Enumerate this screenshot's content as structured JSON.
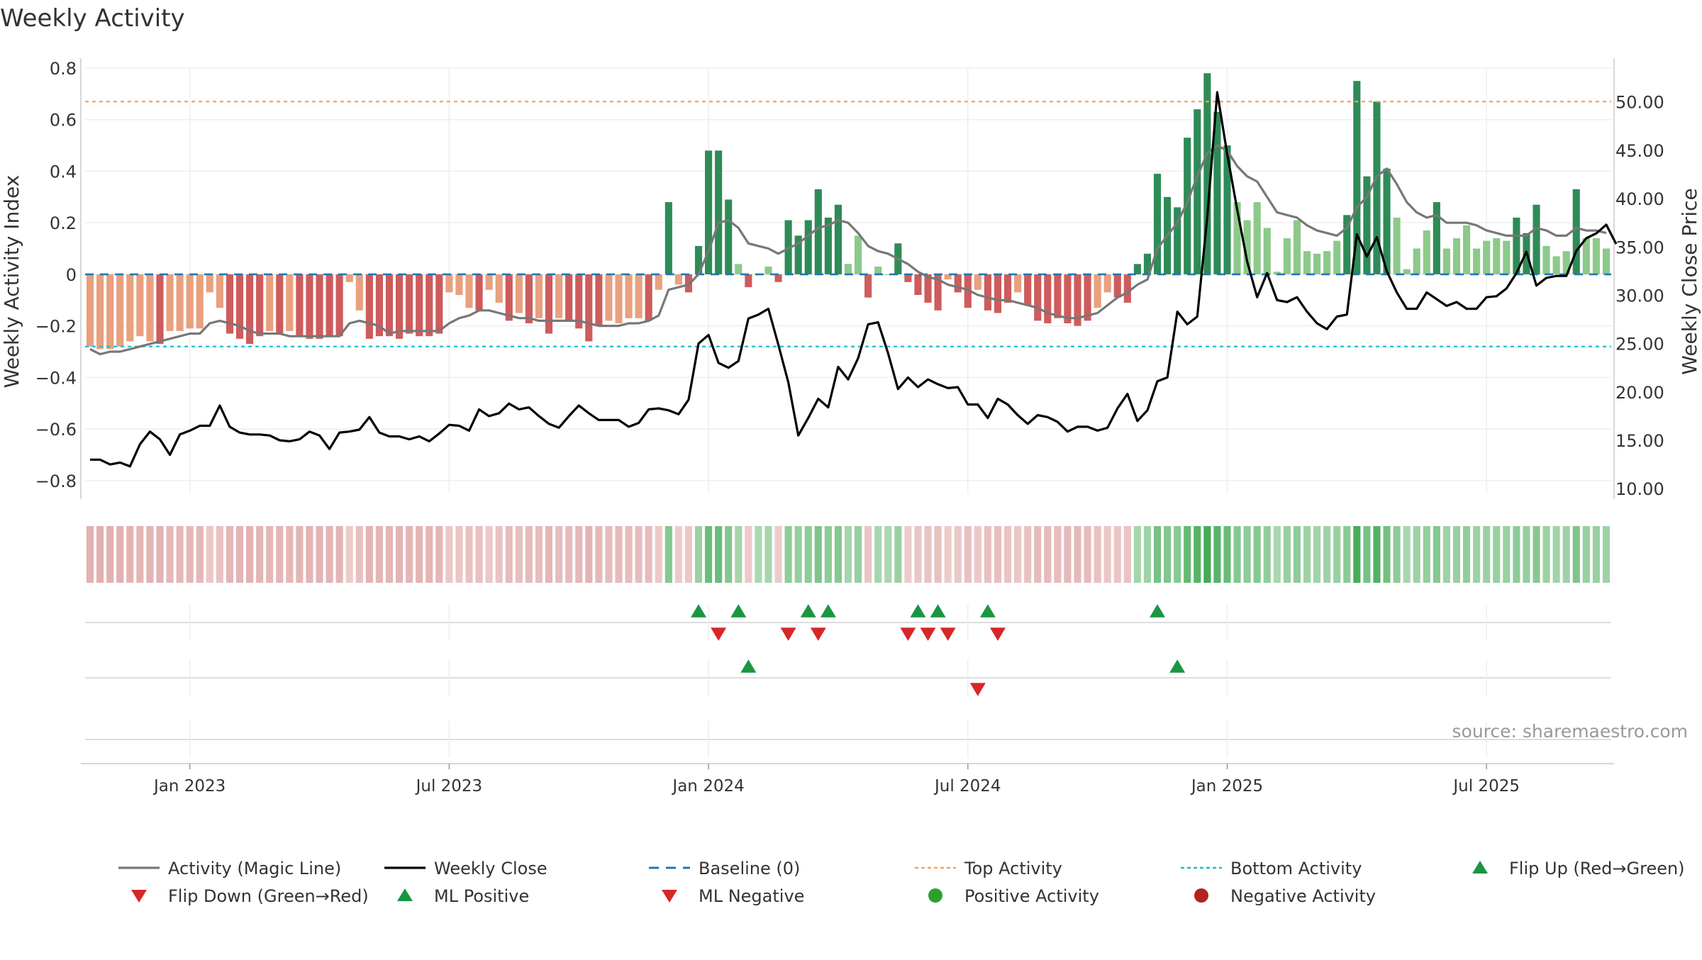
{
  "chart_data": {
    "type": "bar",
    "title": "Weekly Activity",
    "ylabel_left": "Weekly Activity Index",
    "ylabel_right": "Weekly Close Price",
    "ylim_left": [
      -0.85,
      0.8
    ],
    "ylim_right": [
      9.5,
      53.5
    ],
    "yticks_left": [
      -0.8,
      -0.6,
      -0.4,
      -0.2,
      0,
      0.2,
      0.4,
      0.6,
      0.8
    ],
    "yticks_left_labels": [
      "−0.8",
      "−0.6",
      "−0.4",
      "−0.2",
      "0",
      "0.2",
      "0.4",
      "0.6",
      "0.8"
    ],
    "yticks_right": [
      10,
      15,
      20,
      25,
      30,
      35,
      40,
      45,
      50
    ],
    "yticks_right_labels": [
      "10.00",
      "15.00",
      "20.00",
      "25.00",
      "30.00",
      "35.00",
      "40.00",
      "45.00",
      "50.00"
    ],
    "x_ticks": [
      {
        "week": 10,
        "label": "Jan 2023"
      },
      {
        "week": 36,
        "label": "Jul 2023"
      },
      {
        "week": 62,
        "label": "Jan 2024"
      },
      {
        "week": 88,
        "label": "Jul 2024"
      },
      {
        "week": 114,
        "label": "Jan 2025"
      },
      {
        "week": 140,
        "label": "Jul 2025"
      }
    ],
    "top_activity": 0.67,
    "bottom_activity": -0.28,
    "baseline": 0,
    "activity": [
      -0.28,
      -0.29,
      -0.29,
      -0.28,
      -0.26,
      -0.24,
      -0.26,
      -0.27,
      -0.22,
      -0.22,
      -0.21,
      -0.21,
      -0.07,
      -0.13,
      -0.23,
      -0.25,
      -0.27,
      -0.24,
      -0.22,
      -0.23,
      -0.22,
      -0.24,
      -0.25,
      -0.25,
      -0.24,
      -0.24,
      -0.03,
      -0.14,
      -0.25,
      -0.24,
      -0.24,
      -0.25,
      -0.23,
      -0.24,
      -0.24,
      -0.23,
      -0.07,
      -0.08,
      -0.13,
      -0.14,
      -0.06,
      -0.11,
      -0.18,
      -0.15,
      -0.19,
      -0.17,
      -0.23,
      -0.17,
      -0.18,
      -0.21,
      -0.26,
      -0.2,
      -0.18,
      -0.19,
      -0.17,
      -0.17,
      -0.18,
      -0.06,
      0.28,
      -0.04,
      -0.07,
      0.11,
      0.48,
      0.48,
      0.29,
      0.04,
      -0.05,
      0.0,
      0.03,
      -0.03,
      0.21,
      0.15,
      0.21,
      0.33,
      0.22,
      0.27,
      0.04,
      0.15,
      -0.09,
      0.03,
      0.0,
      0.12,
      -0.03,
      -0.08,
      -0.11,
      -0.14,
      -0.02,
      -0.07,
      -0.13,
      -0.06,
      -0.14,
      -0.15,
      -0.11,
      -0.07,
      -0.12,
      -0.18,
      -0.19,
      -0.17,
      -0.19,
      -0.2,
      -0.18,
      -0.13,
      -0.07,
      -0.09,
      -0.11,
      0.04,
      0.08,
      0.39,
      0.3,
      0.26,
      0.53,
      0.64,
      0.78,
      0.63,
      0.5,
      0.28,
      0.21,
      0.28,
      0.18,
      0.01,
      0.14,
      0.21,
      0.09,
      0.08,
      0.09,
      0.13,
      0.23,
      0.75,
      0.38,
      0.67,
      0.41,
      0.22,
      0.02,
      0.1,
      0.17,
      0.28,
      0.1,
      0.14,
      0.19,
      0.1,
      0.13,
      0.14,
      0.13,
      0.22,
      0.16,
      0.27,
      0.11,
      0.07,
      0.09,
      0.33,
      0.14,
      0.14,
      0.1
    ],
    "activity_magic_line": [
      -0.29,
      -0.31,
      -0.3,
      -0.3,
      -0.29,
      -0.28,
      -0.27,
      -0.26,
      -0.25,
      -0.24,
      -0.23,
      -0.23,
      -0.19,
      -0.18,
      -0.19,
      -0.2,
      -0.22,
      -0.23,
      -0.23,
      -0.23,
      -0.24,
      -0.24,
      -0.24,
      -0.24,
      -0.24,
      -0.24,
      -0.19,
      -0.18,
      -0.19,
      -0.2,
      -0.23,
      -0.22,
      -0.22,
      -0.22,
      -0.22,
      -0.22,
      -0.19,
      -0.17,
      -0.16,
      -0.14,
      -0.14,
      -0.15,
      -0.16,
      -0.17,
      -0.17,
      -0.18,
      -0.18,
      -0.18,
      -0.18,
      -0.18,
      -0.19,
      -0.2,
      -0.2,
      -0.2,
      -0.19,
      -0.19,
      -0.18,
      -0.16,
      -0.06,
      -0.05,
      -0.04,
      0.0,
      0.09,
      0.2,
      0.21,
      0.18,
      0.12,
      0.11,
      0.1,
      0.08,
      0.1,
      0.12,
      0.15,
      0.18,
      0.19,
      0.21,
      0.2,
      0.16,
      0.11,
      0.09,
      0.08,
      0.06,
      0.04,
      0.01,
      -0.01,
      -0.02,
      -0.04,
      -0.05,
      -0.06,
      -0.08,
      -0.09,
      -0.1,
      -0.1,
      -0.11,
      -0.12,
      -0.13,
      -0.15,
      -0.16,
      -0.17,
      -0.17,
      -0.16,
      -0.15,
      -0.12,
      -0.09,
      -0.07,
      -0.04,
      -0.02,
      0.1,
      0.15,
      0.2,
      0.28,
      0.38,
      0.47,
      0.5,
      0.48,
      0.42,
      0.38,
      0.36,
      0.3,
      0.24,
      0.23,
      0.22,
      0.19,
      0.17,
      0.16,
      0.15,
      0.18,
      0.26,
      0.3,
      0.38,
      0.41,
      0.35,
      0.28,
      0.24,
      0.22,
      0.23,
      0.2,
      0.2,
      0.2,
      0.19,
      0.17,
      0.16,
      0.15,
      0.15,
      0.15,
      0.18,
      0.17,
      0.15,
      0.15,
      0.18,
      0.17,
      0.17,
      0.16
    ],
    "weekly_close": [
      13.0,
      13.0,
      12.5,
      12.7,
      12.3,
      14.6,
      15.9,
      15.1,
      13.5,
      15.6,
      16.0,
      16.5,
      16.5,
      18.6,
      16.4,
      15.8,
      15.6,
      15.6,
      15.5,
      15.0,
      14.9,
      15.1,
      15.9,
      15.5,
      14.1,
      15.8,
      15.9,
      16.1,
      17.4,
      15.8,
      15.4,
      15.4,
      15.1,
      15.4,
      14.9,
      15.7,
      16.6,
      16.5,
      16.0,
      18.2,
      17.5,
      17.8,
      18.8,
      18.2,
      18.4,
      17.5,
      16.7,
      16.3,
      17.5,
      18.6,
      17.8,
      17.1,
      17.1,
      17.1,
      16.4,
      16.8,
      18.2,
      18.3,
      18.1,
      17.7,
      19.2,
      25.0,
      25.9,
      23.0,
      22.5,
      23.2,
      27.6,
      28.0,
      28.6,
      24.9,
      21.0,
      15.5,
      17.3,
      19.3,
      18.4,
      22.6,
      21.3,
      23.5,
      27.0,
      27.2,
      24.0,
      20.3,
      21.5,
      20.5,
      21.3,
      20.8,
      20.4,
      20.5,
      18.7,
      18.7,
      17.3,
      19.3,
      18.7,
      17.6,
      16.7,
      17.6,
      17.4,
      16.9,
      15.9,
      16.4,
      16.4,
      16.0,
      16.3,
      18.3,
      19.8,
      17.0,
      18.1,
      21.1,
      21.5,
      28.3,
      27.0,
      27.8,
      38.1,
      51.0,
      44.6,
      38.9,
      33.5,
      29.8,
      32.3,
      29.5,
      29.3,
      29.8,
      28.3,
      27.1,
      26.5,
      27.8,
      28.0,
      36.3,
      34.0,
      36.0,
      32.5,
      30.3,
      28.6,
      28.6,
      30.3,
      29.6,
      28.9,
      29.3,
      28.6,
      28.6,
      29.8,
      29.9,
      30.7,
      32.3,
      34.5,
      31.0,
      31.8,
      32.0,
      32.0,
      34.6,
      35.9,
      36.4,
      37.3,
      35.3
    ],
    "strip_intensity_legend": "bar colour strip mirrors activity sign and strength",
    "flip_up_weeks": [
      61,
      65,
      72,
      74,
      83,
      85,
      90,
      107
    ],
    "flip_down_weeks": [
      63,
      70,
      73,
      82,
      84,
      86,
      91
    ],
    "ml_positive_weeks": [
      66,
      109
    ],
    "ml_negative_weeks": [
      89
    ],
    "legend": [
      {
        "label": "Activity (Magic Line)",
        "kind": "line",
        "color": "#777777"
      },
      {
        "label": "Weekly Close",
        "kind": "line",
        "color": "#000000"
      },
      {
        "label": "Baseline (0)",
        "kind": "dash",
        "color": "#1f77b4"
      },
      {
        "label": "Top Activity",
        "kind": "dot",
        "color": "#f4a261"
      },
      {
        "label": "Bottom Activity",
        "kind": "dot",
        "color": "#17becf"
      },
      {
        "label": "Flip Up (Red→Green)",
        "kind": "tri-up",
        "color": "#1a9641"
      },
      {
        "label": "Flip Down (Green→Red)",
        "kind": "tri-down",
        "color": "#d62728"
      },
      {
        "label": "ML Positive",
        "kind": "tri-up",
        "color": "#1a9641"
      },
      {
        "label": "ML Negative",
        "kind": "tri-down",
        "color": "#d62728"
      },
      {
        "label": "Positive Activity",
        "kind": "circle",
        "color": "#2ca02c"
      },
      {
        "label": "Negative Activity",
        "kind": "circle",
        "color": "#b22222"
      }
    ],
    "colors": {
      "pos_strong": "#2e8b57",
      "pos_light": "#8cc98a",
      "neg_strong": "#cd5c5c",
      "neg_light": "#e9a07e",
      "magic_line": "#777777",
      "close_line": "#000000",
      "baseline": "#1f77b4",
      "top_activity": "#f4a261",
      "bottom_activity": "#17becf",
      "flip_up": "#1a9641",
      "flip_down": "#d62728"
    },
    "source": "source: sharemaestro.com"
  }
}
